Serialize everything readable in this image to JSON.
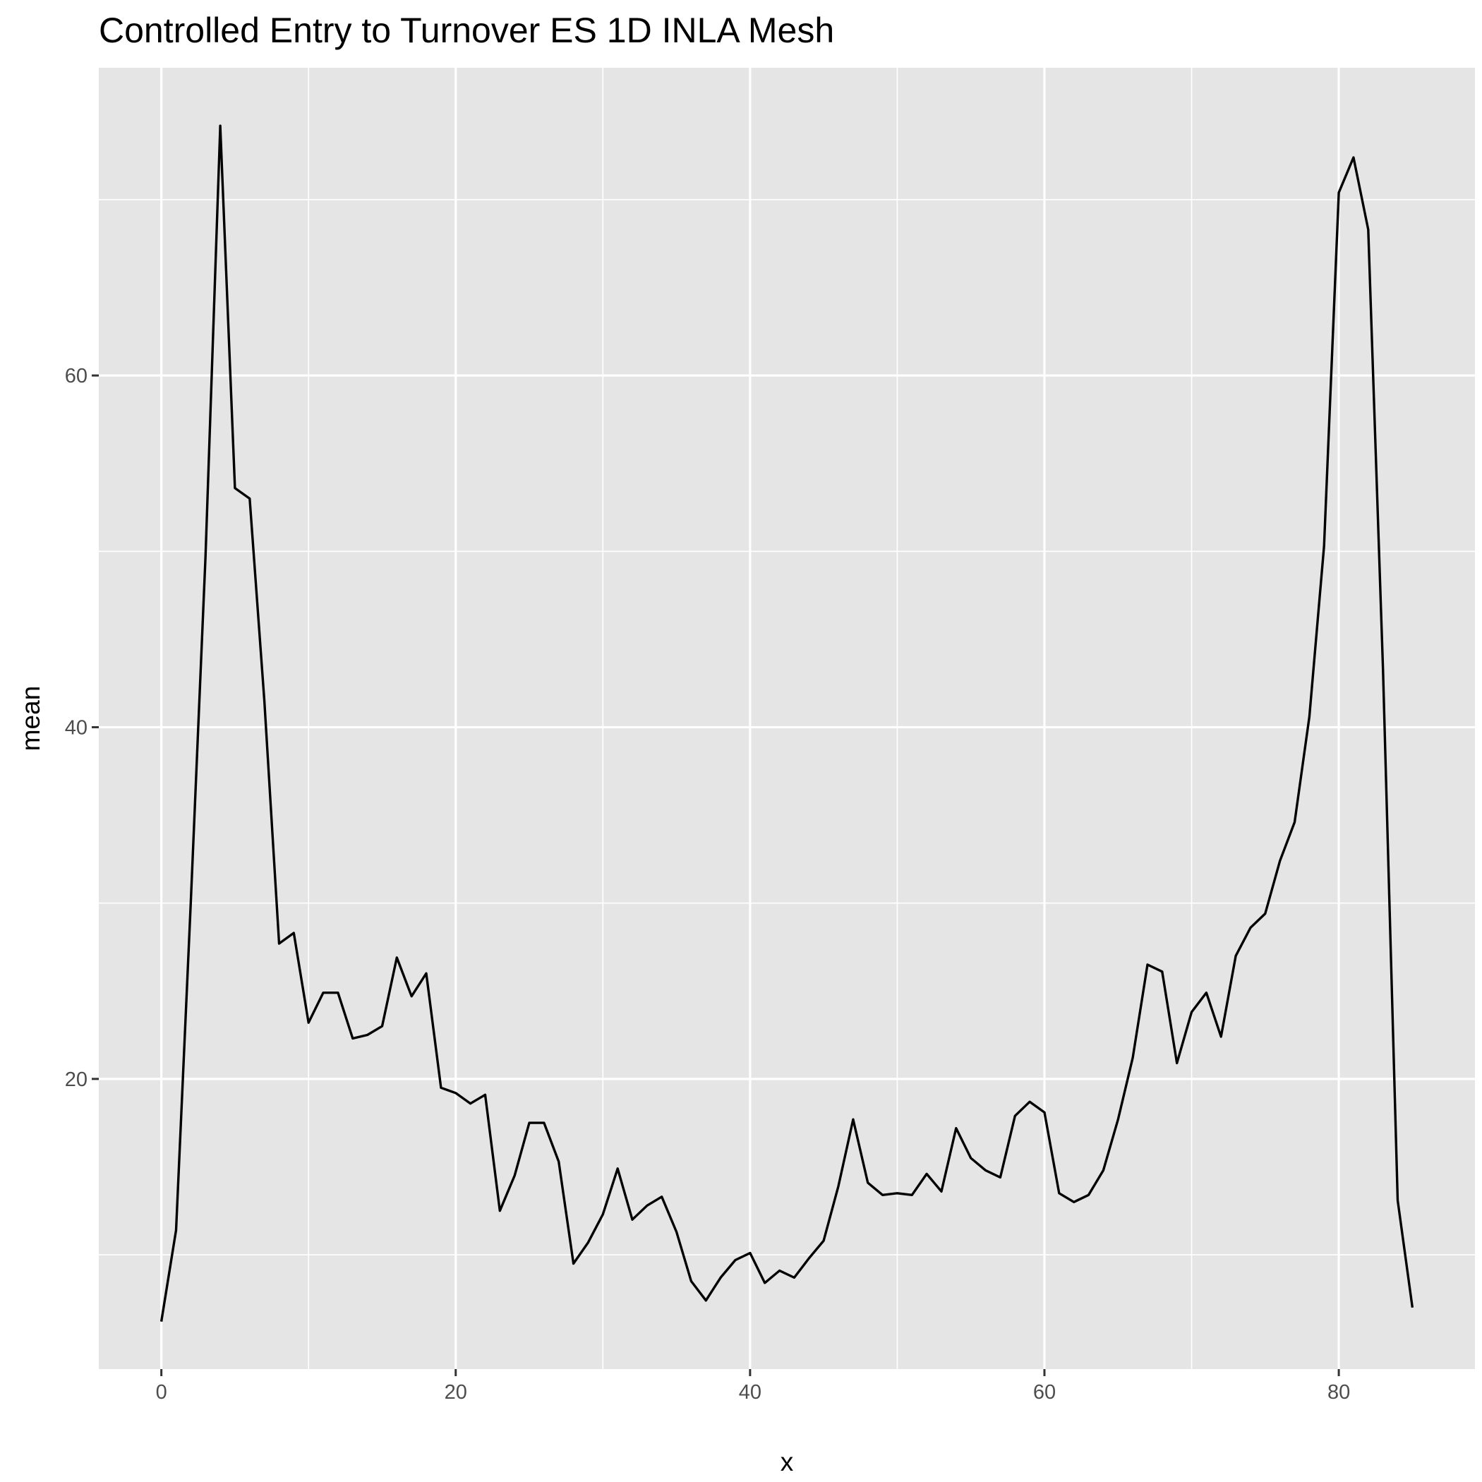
{
  "chart_data": {
    "type": "line",
    "title": "Controlled Entry to Turnover ES 1D INLA Mesh",
    "xlabel": "x",
    "ylabel": "mean",
    "xlim": [
      -4.25,
      89.25
    ],
    "ylim": [
      3.5,
      77.5
    ],
    "x_ticks": [
      0,
      20,
      40,
      60,
      80
    ],
    "y_ticks": [
      20,
      40,
      60
    ],
    "grid": true,
    "colors": {
      "panel": "#e5e5e5",
      "grid": "#ffffff",
      "line": "#000000",
      "tick": "#333333",
      "tick_label": "#4d4d4d"
    },
    "series": [
      {
        "x": [
          0,
          1,
          2,
          3,
          4,
          5,
          6,
          7,
          8,
          9,
          10,
          11,
          12,
          13,
          14,
          15,
          16,
          17,
          18,
          19,
          20,
          21,
          22,
          23,
          24,
          25,
          26,
          27,
          28,
          29,
          30,
          31,
          32,
          33,
          34,
          35,
          36,
          37,
          38,
          39,
          40,
          41,
          42,
          43,
          44,
          45,
          46,
          47,
          48,
          49,
          50,
          51,
          52,
          53,
          54,
          55,
          56,
          57,
          58,
          59,
          60,
          61,
          62,
          63,
          64,
          65,
          66,
          67,
          68,
          69,
          70,
          71,
          72,
          73,
          74,
          75,
          76,
          77,
          78,
          79,
          80,
          81,
          82,
          83,
          84,
          85
        ],
        "values": [
          6.2,
          11.4,
          30.0,
          49.7,
          74.2,
          53.6,
          53.0,
          41.5,
          27.7,
          28.3,
          23.2,
          24.9,
          24.9,
          22.3,
          22.5,
          23.0,
          26.9,
          24.7,
          26.0,
          19.5,
          19.2,
          18.6,
          19.1,
          12.5,
          14.5,
          17.5,
          17.5,
          15.3,
          9.5,
          10.7,
          12.3,
          14.9,
          12.0,
          12.8,
          13.3,
          11.3,
          8.5,
          7.4,
          8.7,
          9.7,
          10.1,
          8.4,
          9.1,
          8.7,
          9.8,
          10.8,
          13.9,
          17.7,
          14.1,
          13.4,
          13.5,
          13.4,
          14.6,
          13.6,
          17.2,
          15.5,
          14.8,
          14.4,
          17.9,
          18.7,
          18.1,
          13.5,
          13.0,
          13.4,
          14.8,
          17.7,
          21.2,
          26.5,
          26.1,
          20.9,
          23.8,
          24.9,
          22.4,
          27.0,
          28.6,
          29.4,
          32.4,
          34.6,
          40.6,
          50.3,
          70.4,
          72.4,
          68.3,
          43.3,
          13.1,
          7.0
        ]
      }
    ]
  }
}
